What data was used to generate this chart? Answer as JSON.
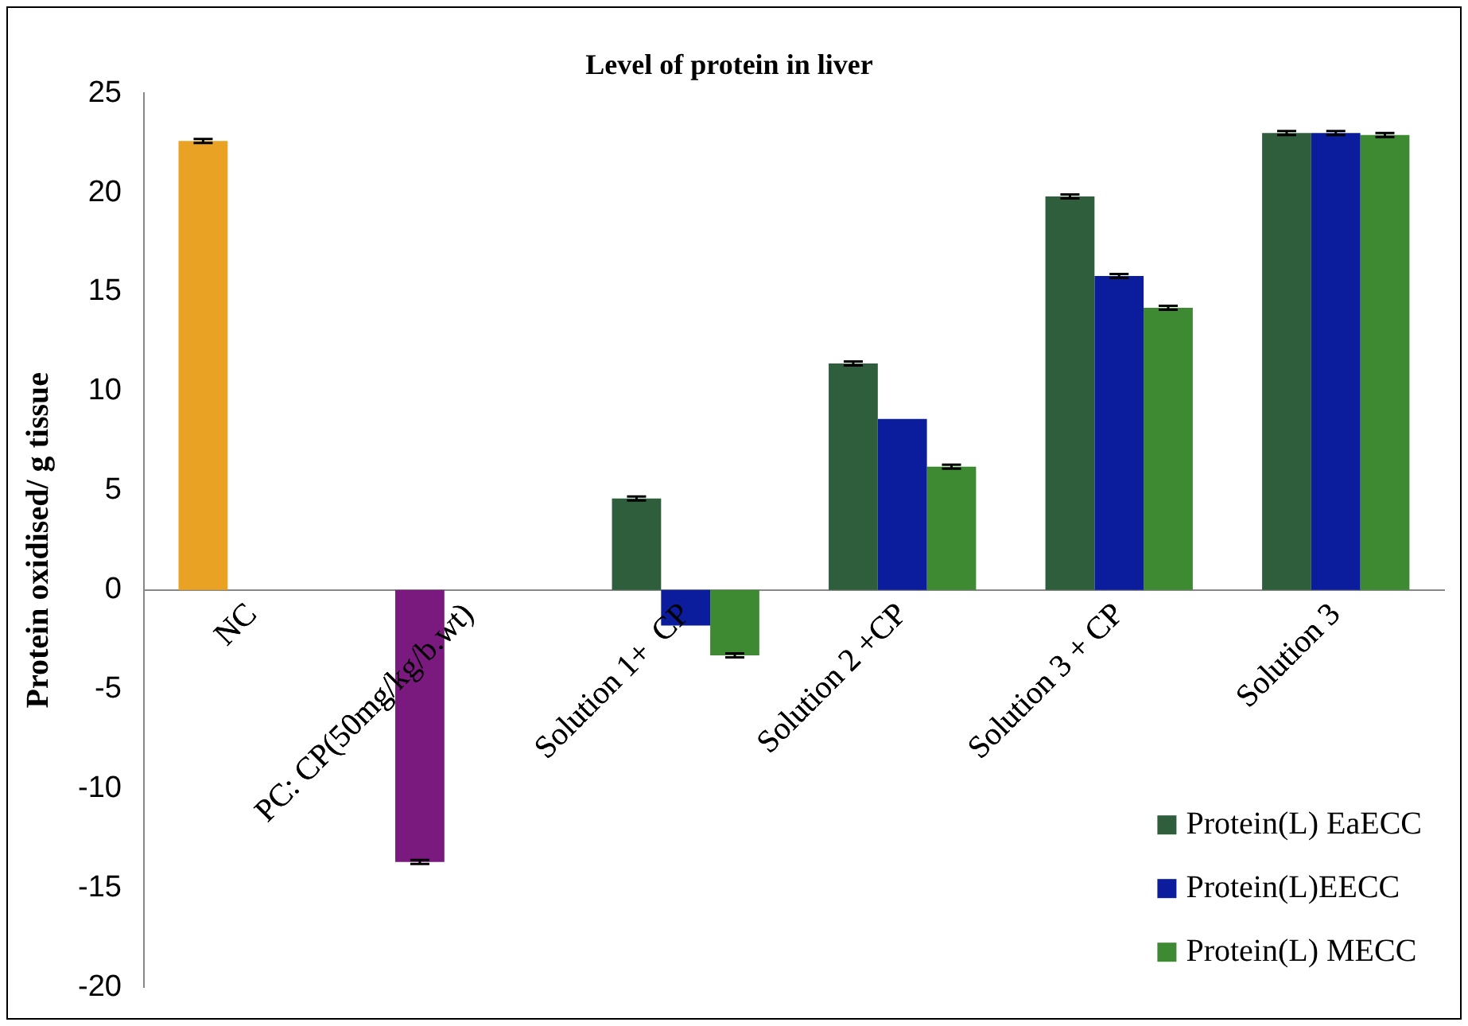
{
  "chart_data": {
    "type": "bar",
    "title": "Level of protein in liver",
    "ylabel": "Protein oxidised/ g tissue",
    "categories": [
      "NC",
      "PC: CP(50mg/kg/b.wt)",
      "Solution 1+  CP",
      "Solution 2 +CP",
      "Solution 3 + CP",
      "Solution 3"
    ],
    "series": [
      {
        "name": "Protein(L) EaECC",
        "color": "#2e5e3c",
        "colors": [
          "#e9a224",
          "#7a1a7e",
          "#2e5e3c",
          "#2e5e3c",
          "#2e5e3c",
          "#2e5e3c"
        ],
        "values": [
          22.6,
          -13.7,
          4.6,
          11.4,
          19.8,
          23.0
        ],
        "errors": [
          0.1,
          0.1,
          0.1,
          0.1,
          0.1,
          0.1
        ]
      },
      {
        "name": "Protein(L)EECC",
        "color": "#0b1c9c",
        "values": [
          null,
          null,
          -1.8,
          8.6,
          15.8,
          23.0
        ],
        "errors": [
          null,
          null,
          null,
          null,
          0.1,
          0.1
        ]
      },
      {
        "name": "Protein(L) MECC",
        "color": "#3e8a32",
        "values": [
          null,
          null,
          -3.3,
          6.2,
          14.2,
          22.9
        ],
        "errors": [
          null,
          null,
          0.1,
          0.1,
          0.1,
          0.1
        ]
      }
    ],
    "ylim": [
      -20,
      25
    ],
    "yticks": [
      -20,
      -15,
      -10,
      -5,
      0,
      5,
      10,
      15,
      20,
      25
    ],
    "grid": false,
    "legend": "bottom right"
  }
}
